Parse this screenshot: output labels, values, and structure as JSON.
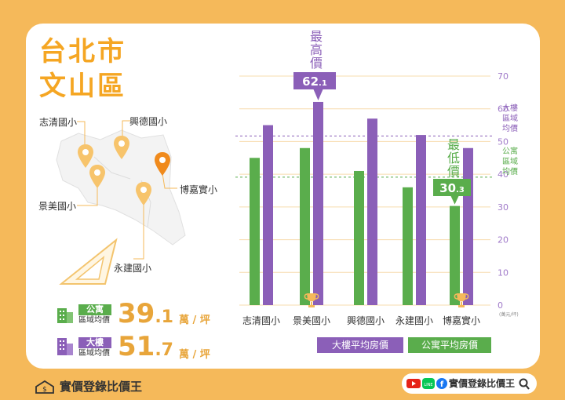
{
  "title": {
    "line1": "台北市",
    "line2": "文山區"
  },
  "map_labels": [
    "志清國小",
    "興德國小",
    "景美國小",
    "博嘉實小",
    "永建國小"
  ],
  "stats": {
    "apartment": {
      "tag": "公寓",
      "label": "區域均價",
      "value_int": "39",
      "value_dec": ".1",
      "unit": "萬 / 坪",
      "color": "#5aad4c"
    },
    "building": {
      "tag": "大樓",
      "label": "區域均價",
      "value_int": "51",
      "value_dec": ".7",
      "unit": "萬 / 坪",
      "color": "#8b5fb8"
    }
  },
  "chart_data": {
    "type": "bar",
    "categories": [
      "志清國小",
      "景美國小",
      "興德國小",
      "永建國小",
      "博嘉實小"
    ],
    "series": [
      {
        "name": "公寓平均房價",
        "color": "#5aad4c",
        "values": [
          45,
          48,
          41,
          36,
          30.3
        ]
      },
      {
        "name": "大樓平均房價",
        "color": "#8b5fb8",
        "values": [
          55,
          62.1,
          57,
          52,
          48
        ]
      }
    ],
    "ylim": [
      0,
      70
    ],
    "yticks": [
      0,
      10,
      20,
      30,
      40,
      50,
      60,
      70
    ],
    "yunit": "(萬元/坪)",
    "reference_lines": [
      {
        "name": "大樓區域均價",
        "value": 51.7,
        "color": "#8b5fb8"
      },
      {
        "name": "公寓區域均價",
        "value": 39.1,
        "color": "#5aad4c"
      }
    ],
    "ref_labels": {
      "building": "大樓區域均價",
      "apartment": "公寓區域均價"
    },
    "max_annotation": {
      "label": "最高價",
      "value_int": "62",
      "value_dec": ".1",
      "category_index": 1,
      "series": 1
    },
    "min_annotation": {
      "label": "最低價",
      "value_int": "30",
      "value_dec": ".3",
      "category_index": 4,
      "series": 0
    },
    "legend": [
      "大樓平均房價",
      "公寓平均房價"
    ]
  },
  "footer": {
    "brand": "實價登錄比價王",
    "social_name": "實價登錄比價王"
  },
  "colors": {
    "background": "#f5b95a",
    "accent": "#f5a623"
  }
}
